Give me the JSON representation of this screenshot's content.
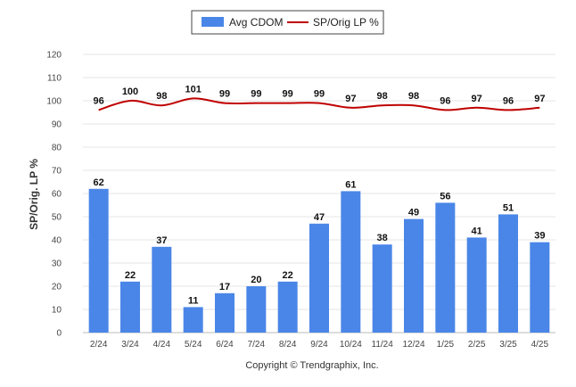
{
  "chart_data": {
    "type": "bar",
    "categories": [
      "2/24",
      "3/24",
      "4/24",
      "5/24",
      "6/24",
      "7/24",
      "8/24",
      "9/24",
      "10/24",
      "11/24",
      "12/24",
      "1/25",
      "2/25",
      "3/25",
      "4/25"
    ],
    "series": [
      {
        "name": "Avg CDOM",
        "type": "bar",
        "values": [
          62,
          22,
          37,
          11,
          17,
          20,
          22,
          47,
          61,
          38,
          49,
          56,
          41,
          51,
          39
        ],
        "color": "#4a86e8"
      },
      {
        "name": "SP/Orig LP %",
        "type": "line",
        "values": [
          96,
          100,
          98,
          101,
          99,
          99,
          99,
          99,
          97,
          98,
          98,
          96,
          97,
          96,
          97
        ],
        "color": "#c00000"
      }
    ],
    "ylabel": "SP/Orig. LP %",
    "ylim": [
      0,
      120
    ],
    "yticks": [
      0,
      10,
      20,
      30,
      40,
      50,
      60,
      70,
      80,
      90,
      100,
      110,
      120
    ],
    "grid": true,
    "legend_position": "top-center"
  },
  "footer": {
    "copyright": "Copyright © Trendgraphix, Inc."
  }
}
